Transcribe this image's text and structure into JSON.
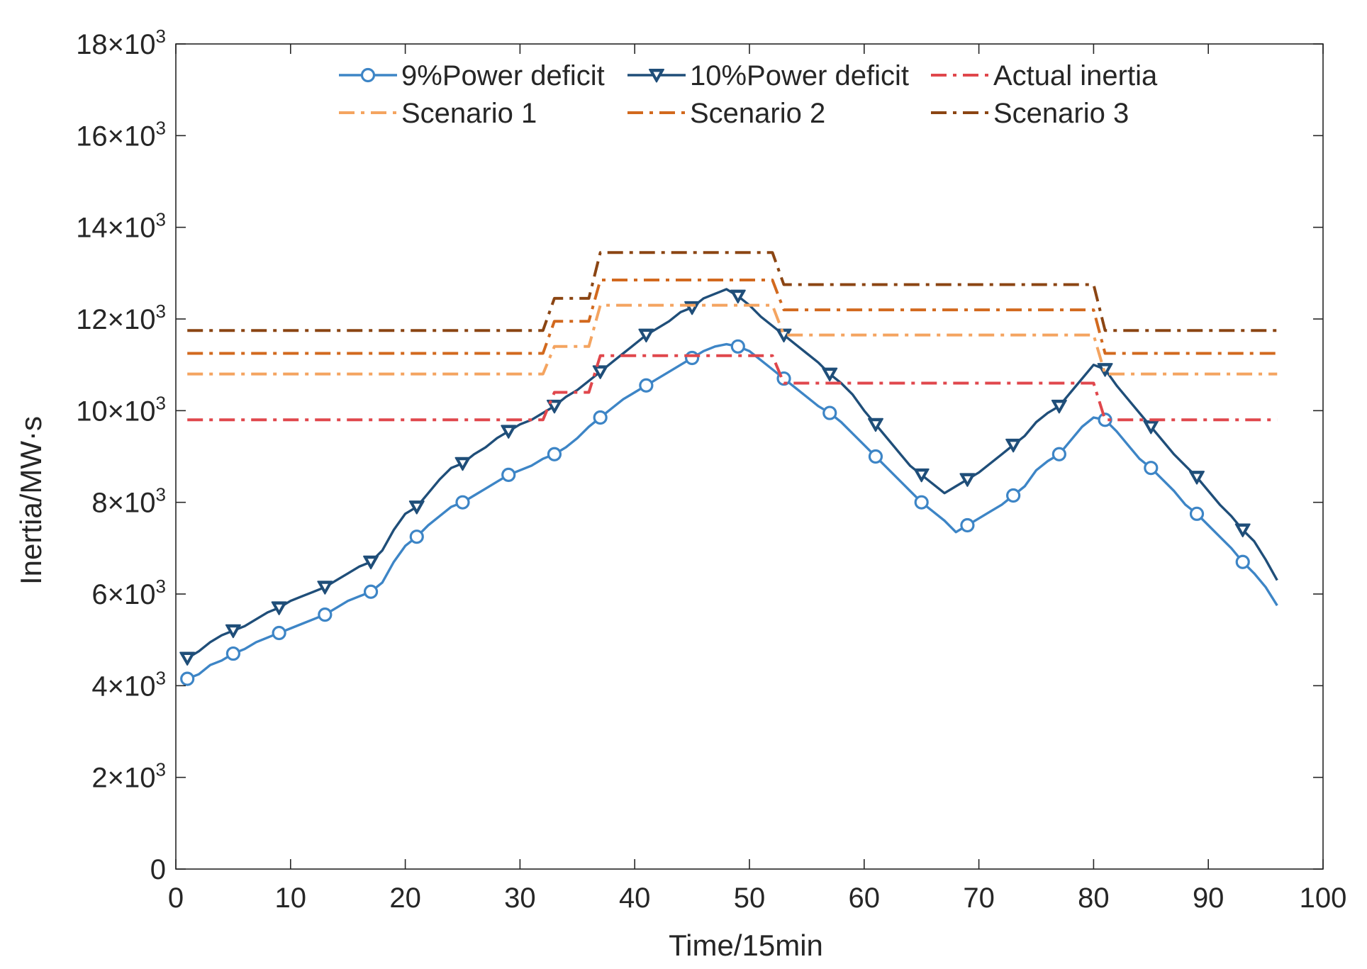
{
  "chart_data": {
    "type": "line",
    "title": "",
    "xlabel": "Time/15min",
    "ylabel": "Inertia/MW·s",
    "xlim": [
      0,
      100
    ],
    "ylim": [
      0,
      18000
    ],
    "xticks": [
      0,
      10,
      20,
      30,
      40,
      50,
      60,
      70,
      80,
      90,
      100
    ],
    "yticks": [
      0,
      2000,
      4000,
      6000,
      8000,
      10000,
      12000,
      14000,
      16000,
      18000
    ],
    "xtick_labels": [
      "0",
      "10",
      "20",
      "30",
      "40",
      "50",
      "60",
      "70",
      "80",
      "90",
      "100"
    ],
    "ytick_labels": [
      {
        "mantissa": "0",
        "exp": ""
      },
      {
        "mantissa": "2×10",
        "exp": "3"
      },
      {
        "mantissa": "4×10",
        "exp": "3"
      },
      {
        "mantissa": "6×10",
        "exp": "3"
      },
      {
        "mantissa": "8×10",
        "exp": "3"
      },
      {
        "mantissa": "10×10",
        "exp": "3"
      },
      {
        "mantissa": "12×10",
        "exp": "3"
      },
      {
        "mantissa": "14×10",
        "exp": "3"
      },
      {
        "mantissa": "16×10",
        "exp": "3"
      },
      {
        "mantissa": "18×10",
        "exp": "3"
      }
    ],
    "grid": false,
    "legend_position": "top",
    "series": [
      {
        "name": "9%Power deficit",
        "color": "#3d85c6",
        "style": "solid",
        "marker": "circle",
        "marker_every": 4,
        "x": [
          1,
          2,
          3,
          4,
          5,
          6,
          7,
          8,
          9,
          10,
          11,
          12,
          13,
          14,
          15,
          16,
          17,
          18,
          19,
          20,
          21,
          22,
          23,
          24,
          25,
          26,
          27,
          28,
          29,
          30,
          31,
          32,
          33,
          34,
          35,
          36,
          37,
          38,
          39,
          40,
          41,
          42,
          43,
          44,
          45,
          46,
          47,
          48,
          49,
          50,
          51,
          52,
          53,
          54,
          55,
          56,
          57,
          58,
          59,
          60,
          61,
          62,
          63,
          64,
          65,
          66,
          67,
          68,
          69,
          70,
          71,
          72,
          73,
          74,
          75,
          76,
          77,
          78,
          79,
          80,
          81,
          82,
          83,
          84,
          85,
          86,
          87,
          88,
          89,
          90,
          91,
          92,
          93,
          94,
          95,
          96
        ],
        "values": [
          4150,
          4250,
          4450,
          4550,
          4700,
          4800,
          4950,
          5050,
          5150,
          5250,
          5350,
          5450,
          5550,
          5700,
          5850,
          5950,
          6050,
          6250,
          6700,
          7050,
          7250,
          7500,
          7700,
          7900,
          8000,
          8150,
          8300,
          8450,
          8600,
          8700,
          8800,
          8950,
          9050,
          9200,
          9400,
          9650,
          9850,
          10050,
          10250,
          10400,
          10550,
          10700,
          10850,
          11000,
          11150,
          11300,
          11400,
          11450,
          11400,
          11300,
          11100,
          10900,
          10700,
          10500,
          10300,
          10100,
          9950,
          9750,
          9500,
          9250,
          9000,
          8750,
          8500,
          8250,
          8000,
          7800,
          7600,
          7350,
          7500,
          7650,
          7800,
          7950,
          8150,
          8350,
          8700,
          8900,
          9050,
          9350,
          9650,
          9850,
          9800,
          9550,
          9250,
          8950,
          8750,
          8500,
          8250,
          7950,
          7750,
          7500,
          7250,
          7000,
          6700,
          6450,
          6150,
          5750
        ]
      },
      {
        "name": "10%Power deficit",
        "color": "#1f4e79",
        "style": "solid",
        "marker": "triangle-down",
        "marker_every": 4,
        "x": [
          1,
          2,
          3,
          4,
          5,
          6,
          7,
          8,
          9,
          10,
          11,
          12,
          13,
          14,
          15,
          16,
          17,
          18,
          19,
          20,
          21,
          22,
          23,
          24,
          25,
          26,
          27,
          28,
          29,
          30,
          31,
          32,
          33,
          34,
          35,
          36,
          37,
          38,
          39,
          40,
          41,
          42,
          43,
          44,
          45,
          46,
          47,
          48,
          49,
          50,
          51,
          52,
          53,
          54,
          55,
          56,
          57,
          58,
          59,
          60,
          61,
          62,
          63,
          64,
          65,
          66,
          67,
          68,
          69,
          70,
          71,
          72,
          73,
          74,
          75,
          76,
          77,
          78,
          79,
          80,
          81,
          82,
          83,
          84,
          85,
          86,
          87,
          88,
          89,
          90,
          91,
          92,
          93,
          94,
          95,
          96
        ],
        "values": [
          4600,
          4750,
          4950,
          5100,
          5200,
          5300,
          5450,
          5600,
          5700,
          5850,
          5950,
          6050,
          6150,
          6300,
          6450,
          6600,
          6700,
          6950,
          7400,
          7750,
          7900,
          8200,
          8500,
          8750,
          8850,
          9050,
          9200,
          9400,
          9550,
          9700,
          9800,
          9950,
          10100,
          10300,
          10450,
          10650,
          10850,
          11050,
          11250,
          11450,
          11650,
          11800,
          11950,
          12150,
          12250,
          12450,
          12550,
          12650,
          12500,
          12300,
          12050,
          11850,
          11650,
          11450,
          11250,
          11050,
          10800,
          10600,
          10350,
          10000,
          9700,
          9400,
          9100,
          8800,
          8600,
          8400,
          8200,
          8350,
          8500,
          8650,
          8850,
          9050,
          9250,
          9450,
          9750,
          9950,
          10100,
          10400,
          10700,
          11000,
          10900,
          10550,
          10250,
          9950,
          9650,
          9350,
          9050,
          8800,
          8550,
          8250,
          7950,
          7700,
          7400,
          7150,
          6750,
          6300
        ]
      },
      {
        "name": "Actual inertia",
        "color": "#e0474c",
        "style": "dashdot",
        "marker": "none",
        "x": [
          1,
          32,
          33,
          36,
          37,
          52,
          53,
          80,
          81,
          96
        ],
        "values": [
          9800,
          9800,
          10400,
          10400,
          11200,
          11200,
          10600,
          10600,
          9800,
          9800
        ]
      },
      {
        "name": "Scenario 1",
        "color": "#f4a460",
        "style": "dashdot",
        "marker": "none",
        "x": [
          1,
          32,
          33,
          36,
          37,
          52,
          53,
          80,
          81,
          96
        ],
        "values": [
          10800,
          10800,
          11400,
          11400,
          12300,
          12300,
          11650,
          11650,
          10800,
          10800
        ]
      },
      {
        "name": "Scenario 2",
        "color": "#d2691e",
        "style": "dashdot",
        "marker": "none",
        "x": [
          1,
          32,
          33,
          36,
          37,
          52,
          53,
          80,
          81,
          96
        ],
        "values": [
          11250,
          11250,
          11950,
          11950,
          12850,
          12850,
          12200,
          12200,
          11250,
          11250
        ]
      },
      {
        "name": "Scenario 3",
        "color": "#8b4513",
        "style": "dashdot",
        "marker": "none",
        "x": [
          1,
          32,
          33,
          36,
          37,
          52,
          53,
          80,
          81,
          96
        ],
        "values": [
          11750,
          11750,
          12450,
          12450,
          13450,
          13450,
          12750,
          12750,
          11750,
          11750
        ]
      }
    ]
  }
}
